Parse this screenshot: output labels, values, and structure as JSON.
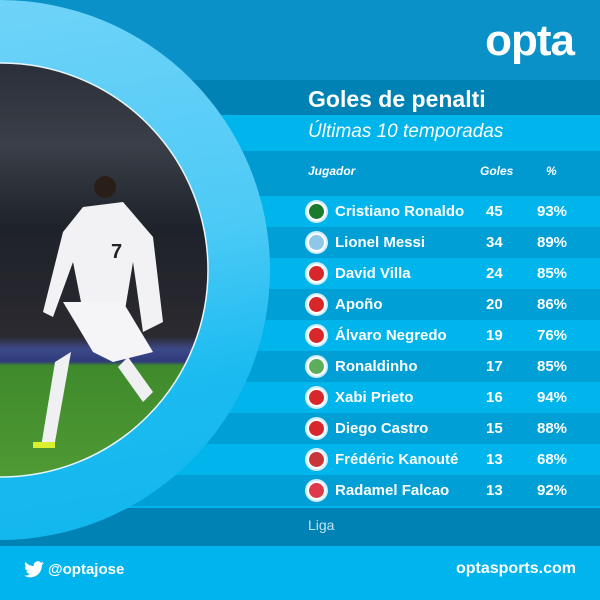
{
  "brand": {
    "logo": "opta",
    "twitter_handle": "@optajose",
    "website": "optasports.com",
    "twitter_icon": "twitter-bird-icon"
  },
  "header": {
    "title": "Goles de penalti",
    "subtitle": "Últimas 10 temporadas"
  },
  "table": {
    "columns": {
      "player": "Jugador",
      "goals": "Goles",
      "pct": "%"
    },
    "rows": [
      {
        "name": "Cristiano Ronaldo",
        "goals": "45",
        "pct": "93%",
        "flag": "portugal",
        "flag_color": "#1a7a2e"
      },
      {
        "name": "Lionel Messi",
        "goals": "34",
        "pct": "89%",
        "flag": "argentina",
        "flag_color": "#8ec7e8"
      },
      {
        "name": "David Villa",
        "goals": "24",
        "pct": "85%",
        "flag": "spain",
        "flag_color": "#d8262a"
      },
      {
        "name": "Apoño",
        "goals": "20",
        "pct": "86%",
        "flag": "spain",
        "flag_color": "#d8262a"
      },
      {
        "name": "Álvaro Negredo",
        "goals": "19",
        "pct": "76%",
        "flag": "spain",
        "flag_color": "#d8262a"
      },
      {
        "name": "Ronaldinho",
        "goals": "17",
        "pct": "85%",
        "flag": "brazil",
        "flag_color": "#5cae5c"
      },
      {
        "name": "Xabi Prieto",
        "goals": "16",
        "pct": "94%",
        "flag": "spain",
        "flag_color": "#d8262a"
      },
      {
        "name": "Diego Castro",
        "goals": "15",
        "pct": "88%",
        "flag": "spain",
        "flag_color": "#d8262a"
      },
      {
        "name": "Frédéric Kanouté",
        "goals": "13",
        "pct": "68%",
        "flag": "mali",
        "flag_color": "#c8363a"
      },
      {
        "name": "Radamel Falcao",
        "goals": "13",
        "pct": "92%",
        "flag": "colombia",
        "flag_color": "#e03a4a"
      }
    ]
  },
  "footer": {
    "competition": "Liga"
  }
}
